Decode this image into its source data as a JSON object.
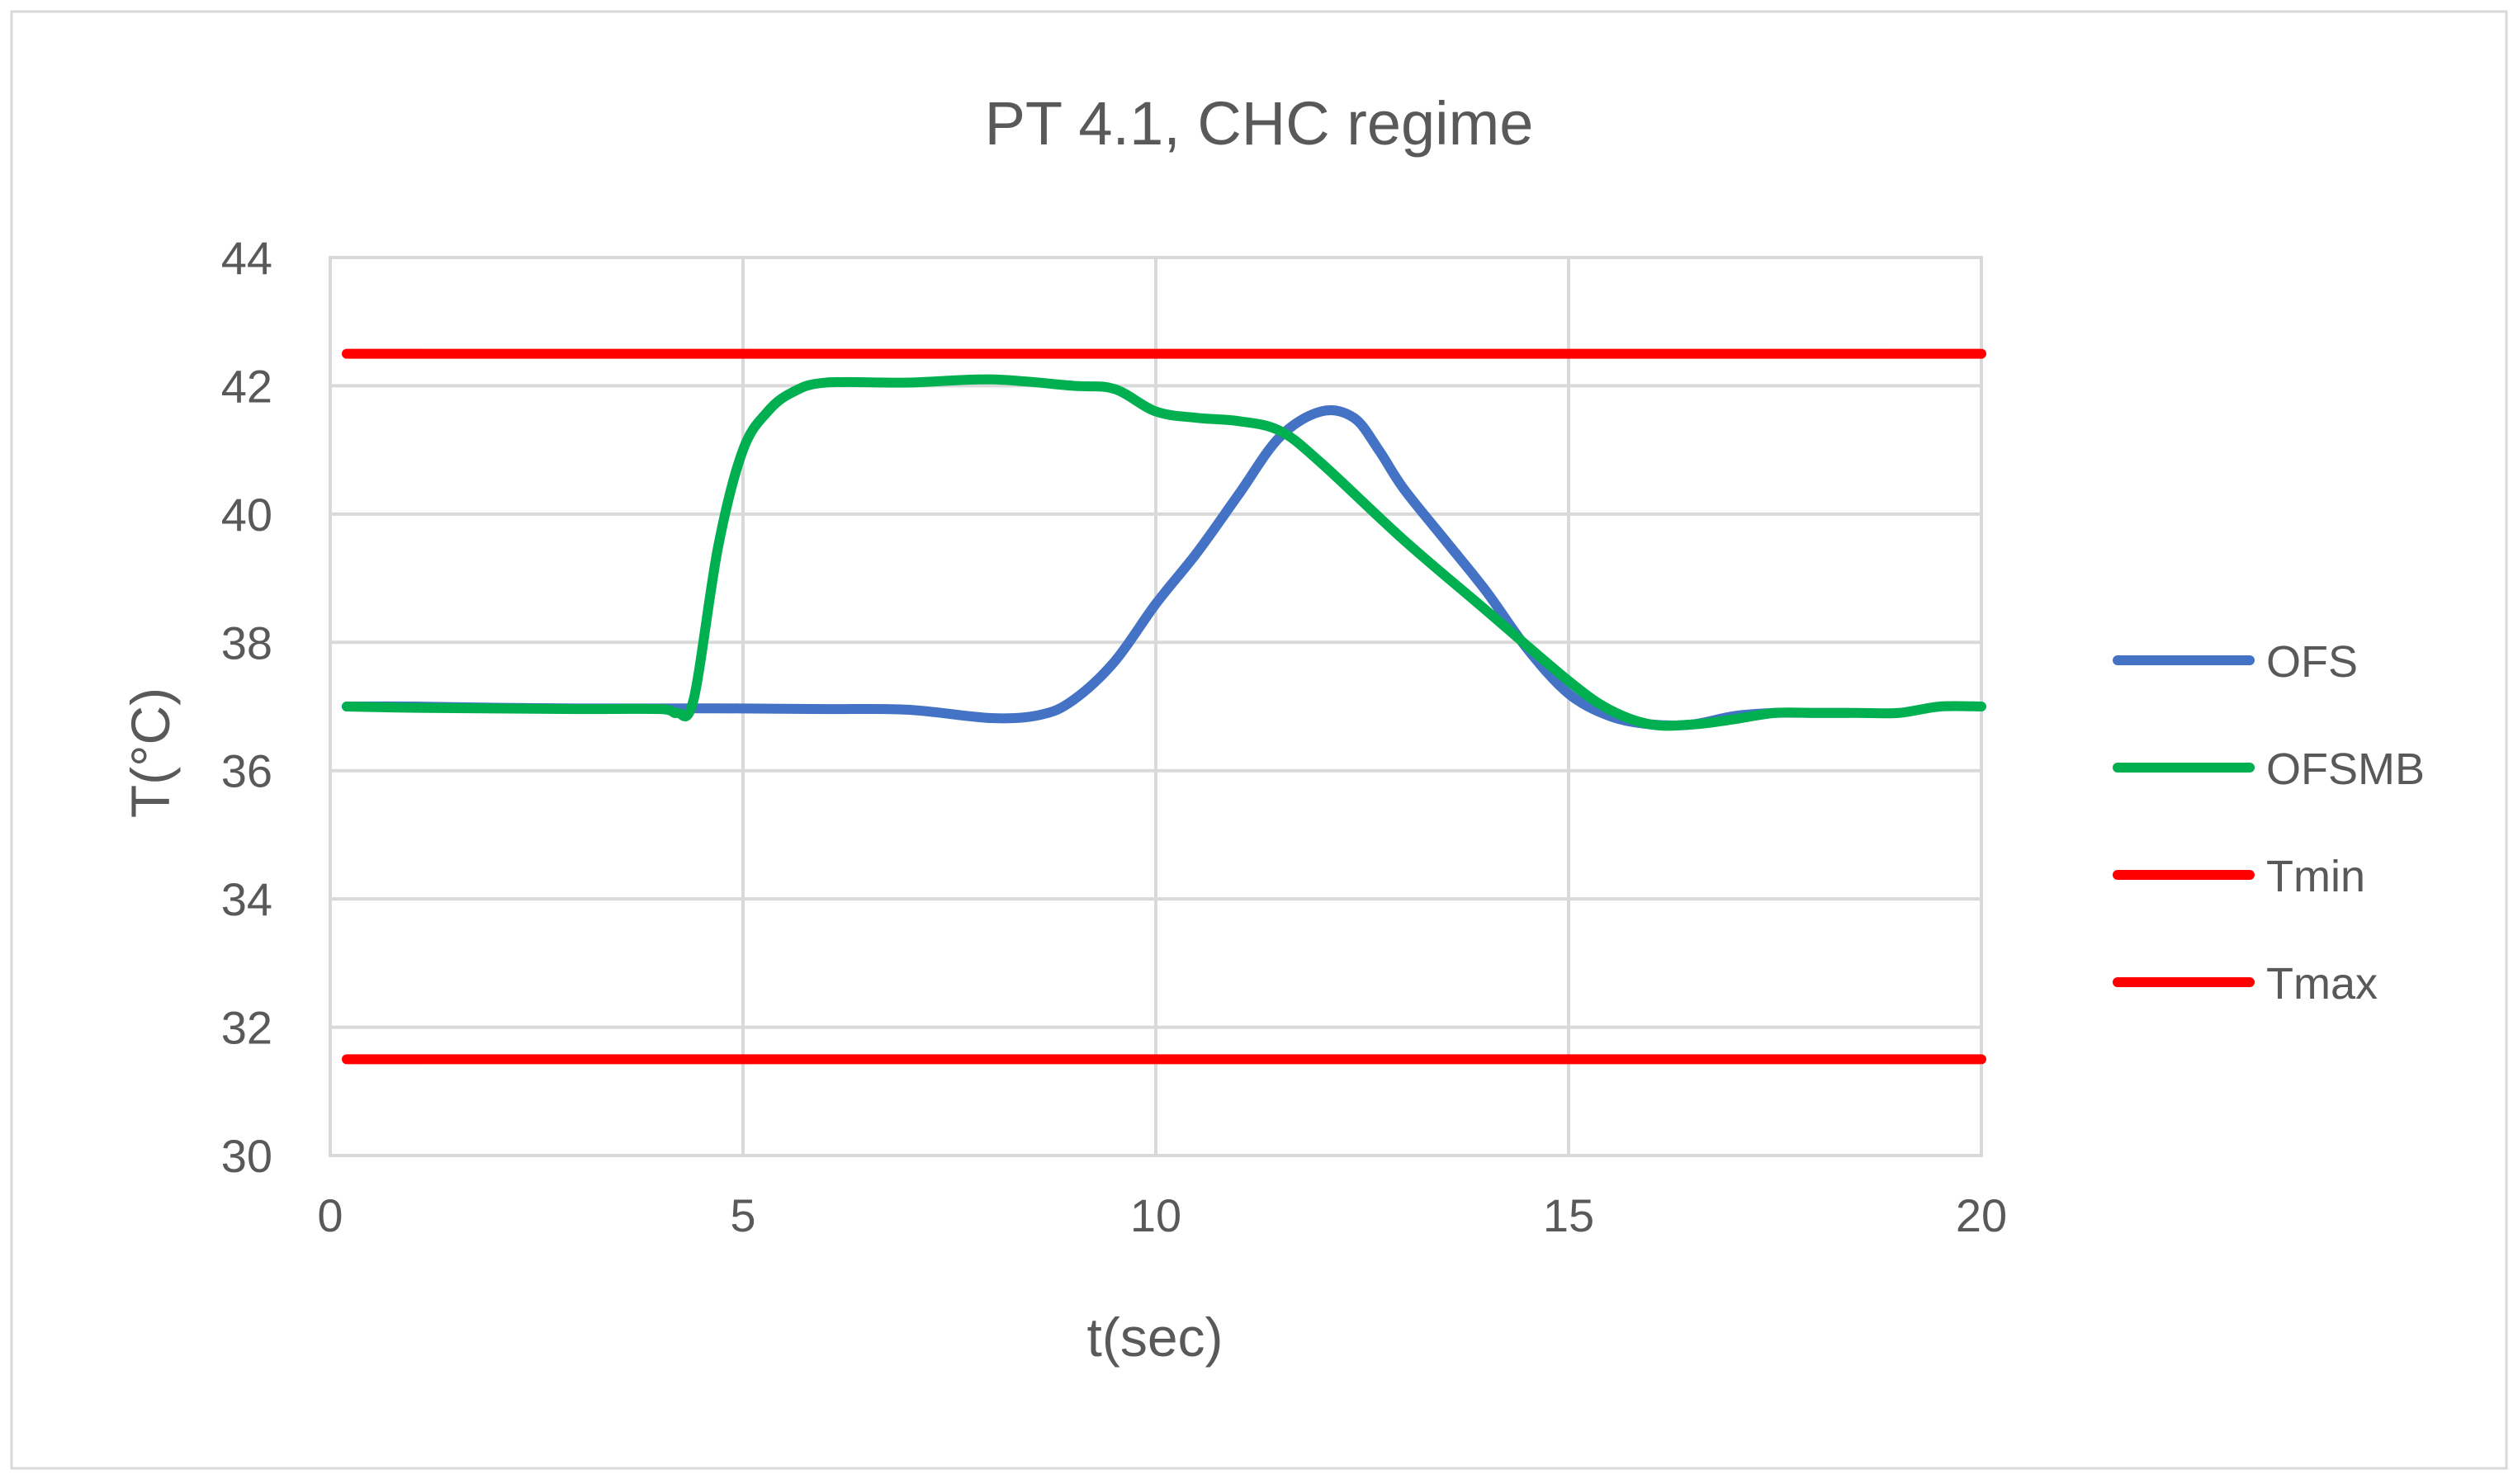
{
  "chart_data": {
    "type": "line",
    "title": "PT 4.1, CHC regime",
    "xlabel": "t(sec)",
    "ylabel": "T(°C)",
    "xlim": [
      0,
      20
    ],
    "ylim": [
      30,
      44
    ],
    "x_ticks": [
      0,
      5,
      10,
      15,
      20
    ],
    "y_ticks": [
      30,
      32,
      34,
      36,
      38,
      40,
      42,
      44
    ],
    "grid": true,
    "legend_position": "right",
    "series": [
      {
        "name": "OFS",
        "color": "#4472c4",
        "x": [
          0.2,
          1,
          2,
          3,
          4,
          5,
          6,
          7,
          8,
          8.6,
          9,
          9.5,
          10,
          10.5,
          11,
          11.5,
          12,
          12.4,
          12.7,
          13,
          13.5,
          14,
          14.5,
          15,
          15.5,
          16,
          16.5,
          17,
          17.5,
          18,
          18.4
        ],
        "y": [
          37.0,
          37.0,
          36.98,
          36.97,
          36.97,
          36.97,
          36.96,
          36.95,
          36.82,
          36.87,
          37.1,
          37.7,
          38.6,
          39.4,
          40.3,
          41.2,
          41.6,
          41.5,
          41.0,
          40.4,
          39.6,
          38.8,
          37.9,
          37.2,
          36.85,
          36.72,
          36.72,
          36.85,
          36.9,
          36.9,
          36.9
        ]
      },
      {
        "name": "OFSMB",
        "color": "#00b050",
        "x": [
          0.2,
          1,
          2,
          3,
          4,
          4.2,
          4.4,
          4.7,
          5,
          5.3,
          5.6,
          6,
          7,
          8,
          9,
          9.5,
          10,
          10.5,
          11,
          11.5,
          12,
          13,
          14,
          15,
          15.5,
          16,
          16.5,
          17,
          17.5,
          18,
          18.5,
          19,
          19.5,
          20
        ],
        "y": [
          37.0,
          36.98,
          36.97,
          36.96,
          36.96,
          36.9,
          37.1,
          39.5,
          41.0,
          41.6,
          41.9,
          42.05,
          42.05,
          42.1,
          42.0,
          41.95,
          41.6,
          41.5,
          41.45,
          41.3,
          40.8,
          39.6,
          38.5,
          37.4,
          36.95,
          36.72,
          36.72,
          36.8,
          36.9,
          36.9,
          36.9,
          36.9,
          37.0,
          37.0
        ]
      },
      {
        "name": "Tmin",
        "color": "#ff0000",
        "x": [
          0.2,
          20
        ],
        "y": [
          31.5,
          31.5
        ]
      },
      {
        "name": "Tmax",
        "color": "#ff0000",
        "x": [
          0.2,
          20
        ],
        "y": [
          42.5,
          42.5
        ]
      }
    ]
  }
}
